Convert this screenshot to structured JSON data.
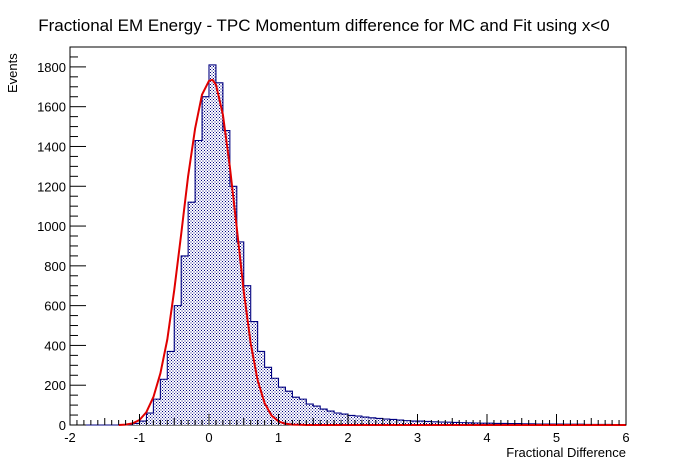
{
  "chart_data": {
    "type": "bar",
    "title": "Fractional EM Energy - TPC Momentum difference for MC and Fit using x<0",
    "xlabel": "Fractional Difference",
    "ylabel": "Events",
    "xlim": [
      -2,
      6
    ],
    "ylim": [
      0,
      1900
    ],
    "x_ticks": [
      -2,
      -1,
      0,
      1,
      2,
      3,
      4,
      5,
      6
    ],
    "y_ticks": [
      0,
      200,
      400,
      600,
      800,
      1000,
      1200,
      1400,
      1600,
      1800
    ],
    "bin_width": 0.1,
    "series": [
      {
        "style": "step histogram",
        "line_color": "#000080",
        "fill_pattern": "dotted",
        "bin_starts": [
          -2.0,
          -1.9,
          -1.8,
          -1.7,
          -1.6,
          -1.5,
          -1.4,
          -1.3,
          -1.2,
          -1.1,
          -1.0,
          -0.9,
          -0.8,
          -0.7,
          -0.6,
          -0.5,
          -0.4,
          -0.3,
          -0.2,
          -0.1,
          0.0,
          0.1,
          0.2,
          0.3,
          0.4,
          0.5,
          0.6,
          0.7,
          0.8,
          0.9,
          1.0,
          1.1,
          1.2,
          1.3,
          1.4,
          1.5,
          1.6,
          1.7,
          1.8,
          1.9,
          2.0,
          2.1,
          2.2,
          2.3,
          2.4,
          2.5,
          2.6,
          2.7,
          2.8,
          2.9,
          3.0,
          3.1,
          3.2,
          3.3,
          3.4,
          3.5,
          3.6,
          3.7,
          3.8,
          3.9,
          4.0,
          4.1,
          4.2,
          4.3,
          4.4,
          4.5,
          4.6,
          4.7,
          4.8,
          4.9,
          5.0,
          5.1,
          5.2,
          5.3,
          5.4,
          5.5,
          5.6,
          5.7,
          5.8,
          5.9
        ],
        "values": [
          0,
          0,
          0,
          0,
          0,
          0,
          0,
          0,
          2,
          8,
          20,
          60,
          130,
          230,
          370,
          600,
          850,
          1120,
          1430,
          1650,
          1810,
          1720,
          1480,
          1200,
          920,
          700,
          520,
          370,
          290,
          235,
          190,
          170,
          140,
          130,
          105,
          95,
          80,
          70,
          60,
          55,
          48,
          45,
          40,
          36,
          33,
          30,
          28,
          25,
          22,
          20,
          20,
          18,
          16,
          15,
          14,
          13,
          12,
          11,
          10,
          9,
          9,
          8,
          8,
          7,
          7,
          6,
          6,
          5,
          5,
          5,
          5,
          4,
          4,
          4,
          3,
          3,
          3,
          3,
          2,
          2
        ]
      },
      {
        "style": "fit curve",
        "color": "#e00000",
        "x": [
          -1.3,
          -1.2,
          -1.1,
          -1.0,
          -0.9,
          -0.8,
          -0.7,
          -0.6,
          -0.5,
          -0.4,
          -0.3,
          -0.2,
          -0.1,
          0.0,
          0.05,
          0.1,
          0.2,
          0.3,
          0.4,
          0.5,
          0.6,
          0.7,
          0.8,
          0.9,
          1.0,
          1.1,
          1.2,
          1.3,
          1.4,
          1.5,
          1.7,
          2.0,
          3.0,
          4.0,
          5.0,
          6.0
        ],
        "values": [
          0,
          2,
          8,
          25,
          65,
          140,
          260,
          430,
          680,
          960,
          1250,
          1490,
          1660,
          1730,
          1735,
          1710,
          1560,
          1300,
          990,
          670,
          410,
          225,
          110,
          48,
          18,
          6,
          2,
          1,
          0,
          0,
          0,
          0,
          0,
          0,
          0,
          0
        ]
      }
    ],
    "grid": false,
    "legend": "none"
  }
}
